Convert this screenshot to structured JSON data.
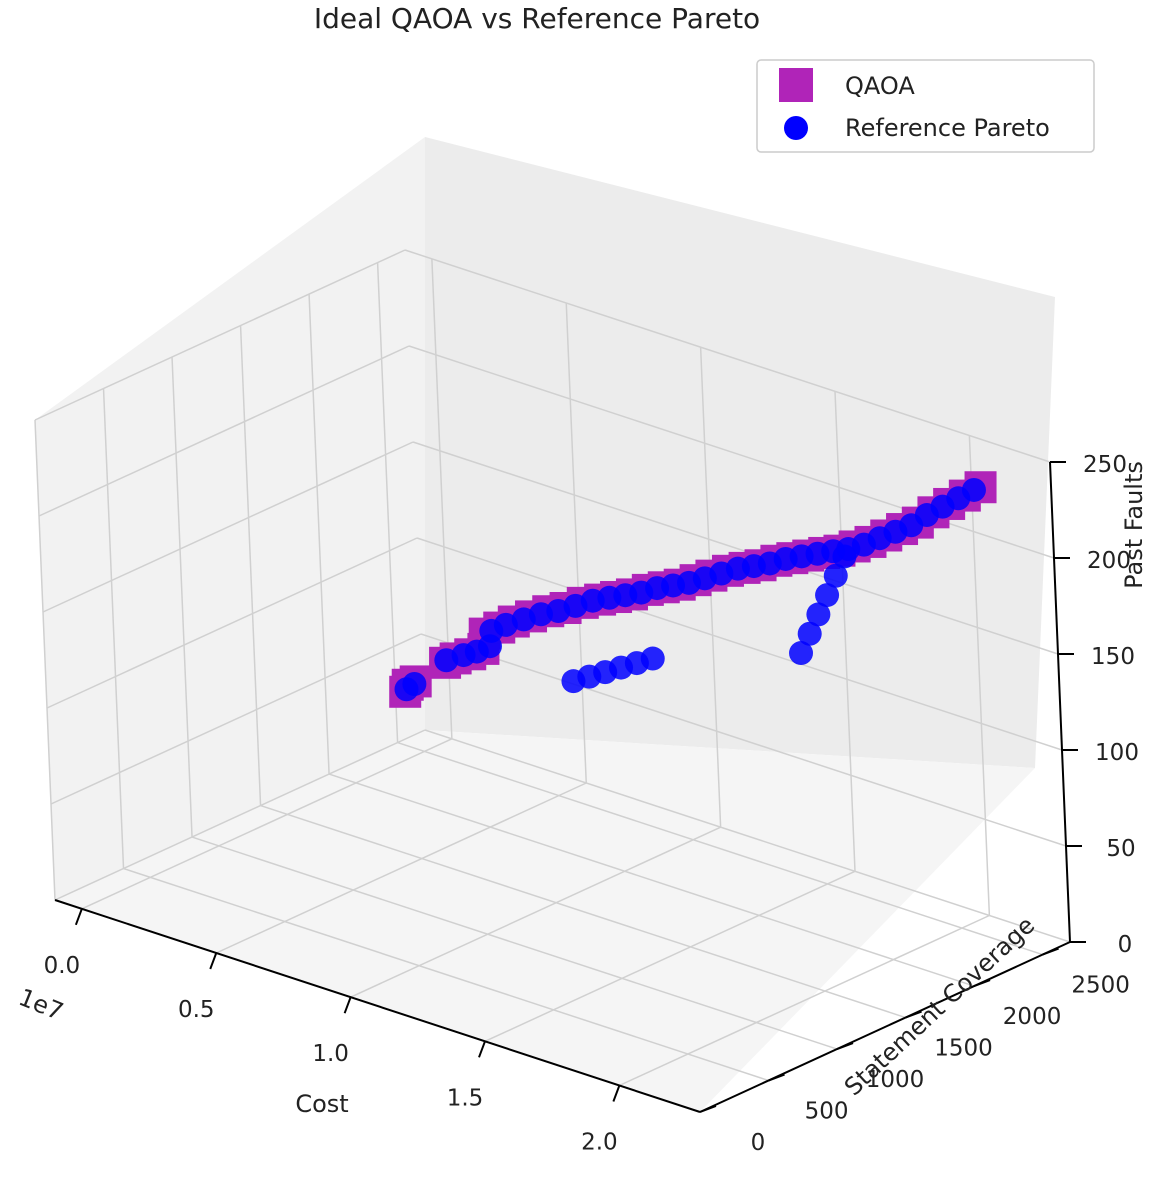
{
  "chart_data": {
    "type": "scatter",
    "title": "Ideal QAOA vs Reference Pareto",
    "xlabel": "Cost",
    "ylabel": "Statement Coverage",
    "zlabel": "Past Faults",
    "x_offset_label": "1e7",
    "legend_position": "top-right",
    "grid": true,
    "x_ticks": [
      "0.0",
      "0.5",
      "1.0",
      "1.5",
      "2.0"
    ],
    "y_ticks": [
      "0",
      "500",
      "1000",
      "1500",
      "2000",
      "2500"
    ],
    "z_ticks": [
      "0",
      "50",
      "100",
      "150",
      "200",
      "250"
    ],
    "xlim": [
      -0.1,
      2.3
    ],
    "ylim": [
      0,
      2700
    ],
    "zlim": [
      0,
      250
    ],
    "series": [
      {
        "name": "QAOA",
        "color": "#b024b8",
        "marker": "square",
        "points": [
          [
            0.0,
            2380,
            35
          ],
          [
            0.0,
            2400,
            38
          ],
          [
            0.02,
            2420,
            40
          ],
          [
            0.55,
            1630,
            100
          ],
          [
            0.58,
            1650,
            103
          ],
          [
            0.62,
            1680,
            106
          ],
          [
            0.66,
            1700,
            110
          ],
          [
            0.72,
            1600,
            124
          ],
          [
            0.76,
            1630,
            128
          ],
          [
            0.8,
            1660,
            132
          ],
          [
            0.85,
            1690,
            136
          ],
          [
            0.9,
            1720,
            140
          ],
          [
            0.95,
            1750,
            143
          ],
          [
            1.0,
            1780,
            147
          ],
          [
            1.05,
            1810,
            150
          ],
          [
            1.1,
            1830,
            153
          ],
          [
            1.15,
            1850,
            156
          ],
          [
            1.2,
            1870,
            160
          ],
          [
            1.25,
            1890,
            163
          ],
          [
            1.3,
            1910,
            166
          ],
          [
            1.35,
            1930,
            170
          ],
          [
            1.4,
            1950,
            174
          ],
          [
            1.45,
            1975,
            178
          ],
          [
            1.5,
            2000,
            181
          ],
          [
            1.55,
            2020,
            184
          ],
          [
            1.6,
            2040,
            188
          ],
          [
            1.65,
            2060,
            191
          ],
          [
            1.7,
            2080,
            194
          ],
          [
            1.75,
            2100,
            197
          ],
          [
            1.8,
            2115,
            200
          ],
          [
            1.85,
            2130,
            204
          ],
          [
            1.9,
            2150,
            208
          ],
          [
            1.95,
            2170,
            213
          ],
          [
            2.0,
            2190,
            218
          ],
          [
            2.05,
            2210,
            223
          ],
          [
            2.1,
            2230,
            230
          ],
          [
            2.15,
            2250,
            236
          ],
          [
            2.2,
            2270,
            242
          ],
          [
            2.25,
            2290,
            248
          ]
        ]
      },
      {
        "name": "Reference Pareto",
        "color": "#0000ff",
        "marker": "circle",
        "points": [
          [
            0.0,
            2390,
            36
          ],
          [
            0.02,
            2410,
            39
          ],
          [
            0.55,
            1640,
            101
          ],
          [
            0.6,
            1670,
            105
          ],
          [
            0.64,
            1690,
            108
          ],
          [
            0.68,
            1710,
            112
          ],
          [
            0.74,
            1610,
            126
          ],
          [
            0.78,
            1640,
            130
          ],
          [
            0.83,
            1675,
            134
          ],
          [
            0.88,
            1705,
            138
          ],
          [
            0.93,
            1735,
            141
          ],
          [
            0.98,
            1765,
            145
          ],
          [
            1.03,
            1795,
            149
          ],
          [
            1.08,
            1820,
            152
          ],
          [
            1.13,
            1840,
            155
          ],
          [
            1.18,
            1860,
            158
          ],
          [
            1.23,
            1880,
            162
          ],
          [
            1.28,
            1900,
            165
          ],
          [
            1.33,
            1920,
            168
          ],
          [
            1.38,
            1940,
            172
          ],
          [
            1.43,
            1965,
            176
          ],
          [
            1.48,
            1990,
            180
          ],
          [
            1.53,
            2010,
            183
          ],
          [
            1.58,
            2030,
            186
          ],
          [
            1.63,
            2050,
            190
          ],
          [
            1.68,
            2070,
            193
          ],
          [
            1.73,
            2090,
            196
          ],
          [
            1.78,
            2108,
            199
          ],
          [
            1.83,
            2122,
            202
          ],
          [
            1.88,
            2140,
            206
          ],
          [
            1.93,
            2160,
            211
          ],
          [
            1.98,
            2180,
            216
          ],
          [
            2.03,
            2200,
            221
          ],
          [
            2.08,
            2220,
            228
          ],
          [
            2.13,
            2240,
            234
          ],
          [
            2.18,
            2260,
            240
          ],
          [
            2.23,
            2280,
            246
          ],
          [
            1.1,
            1500,
            120
          ],
          [
            1.15,
            1520,
            124
          ],
          [
            1.2,
            1540,
            128
          ],
          [
            1.25,
            1560,
            132
          ],
          [
            1.3,
            1580,
            136
          ],
          [
            1.35,
            1600,
            140
          ],
          [
            2.2,
            1050,
            200
          ],
          [
            2.22,
            1080,
            210
          ],
          [
            2.24,
            1110,
            220
          ],
          [
            2.26,
            1140,
            230
          ],
          [
            2.28,
            1170,
            240
          ],
          [
            2.3,
            1200,
            250
          ]
        ]
      }
    ]
  }
}
